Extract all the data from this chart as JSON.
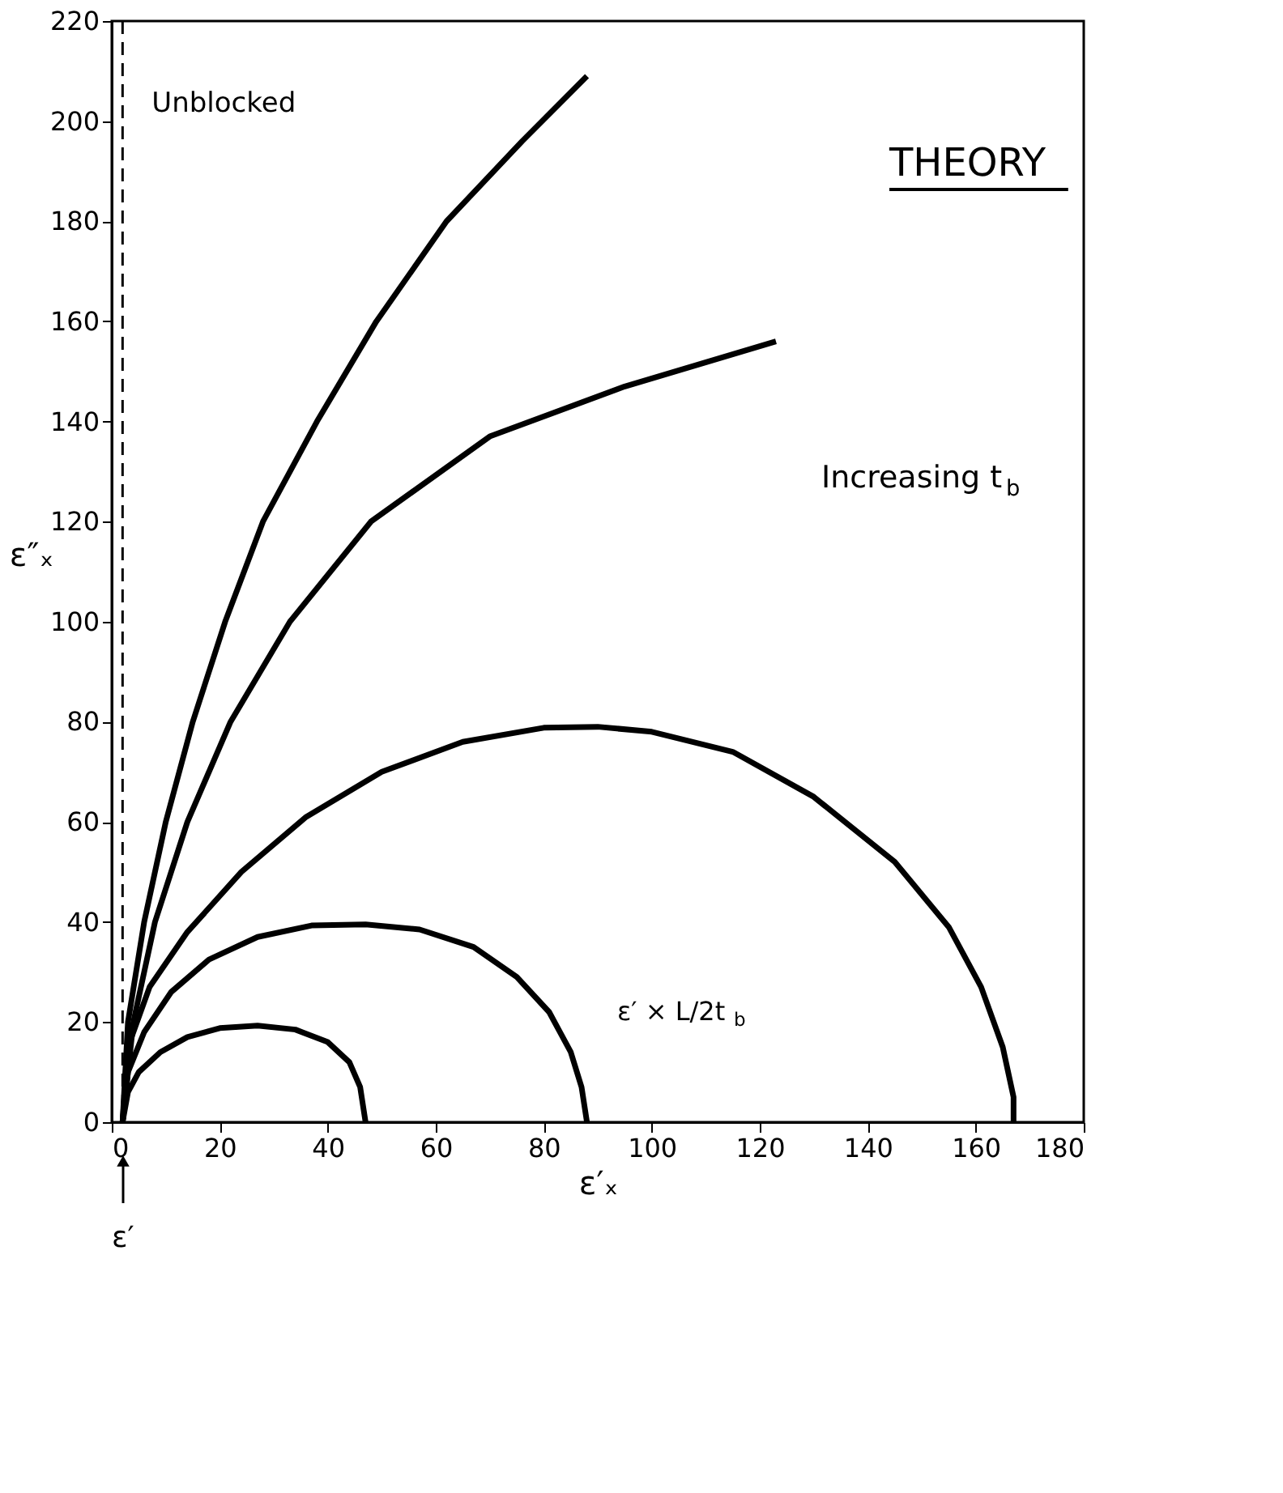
{
  "chart_data": {
    "type": "line",
    "xlabel": "ε′ₓ",
    "ylabel": "ε″ₓ",
    "xlim": [
      0,
      180
    ],
    "xticks": [
      0,
      20,
      40,
      60,
      80,
      100,
      120,
      140,
      160,
      180
    ],
    "ylim": [
      0,
      220
    ],
    "yticks": [
      0,
      20,
      40,
      60,
      80,
      100,
      120,
      140,
      160,
      180,
      200,
      220
    ],
    "marker": "none",
    "line_style": "solid",
    "series": [
      {
        "color": "#000000",
        "x": [
          2,
          3,
          5,
          9,
          14,
          20,
          27,
          34,
          40,
          44,
          46,
          47
        ],
        "values": [
          0,
          6,
          10,
          14,
          17,
          18.8,
          19.3,
          18.5,
          16,
          12,
          7,
          0
        ]
      },
      {
        "color": "#000000",
        "x": [
          2,
          3,
          6,
          11,
          18,
          27,
          37,
          47,
          57,
          67,
          75,
          81,
          85,
          87,
          88
        ],
        "values": [
          0,
          10,
          18,
          26,
          32.5,
          37,
          39.3,
          39.5,
          38.5,
          35,
          29,
          22,
          14,
          7,
          0
        ]
      },
      {
        "color": "#000000",
        "x": [
          2,
          3,
          7,
          14,
          24,
          36,
          50,
          65,
          80,
          90,
          100,
          115,
          130,
          145,
          155,
          161,
          165,
          167,
          167
        ],
        "values": [
          0,
          15,
          27,
          38,
          50,
          61,
          70,
          76,
          78.8,
          79,
          78,
          74,
          65,
          52,
          39,
          27,
          15,
          5,
          0
        ]
      },
      {
        "color": "#000000",
        "x": [
          2,
          4,
          8,
          14,
          22,
          33,
          48,
          70,
          95,
          123
        ],
        "values": [
          0,
          20,
          40,
          60,
          80,
          100,
          120,
          137,
          147,
          156
        ]
      },
      {
        "color": "#000000",
        "x": [
          2,
          3,
          6,
          10,
          15,
          21,
          28,
          38,
          49,
          62,
          76,
          88
        ],
        "values": [
          0,
          20,
          40,
          60,
          80,
          100,
          120,
          140,
          160,
          180,
          196,
          209
        ]
      }
    ],
    "ref_lines": [
      {
        "axis": "x",
        "value": 2,
        "label": "Unblocked",
        "line_style": "dashed",
        "color": "#000000"
      }
    ],
    "annotations": [
      "THEORY",
      "Increasing t$_{b}$",
      "ε′",
      "ε′ × L/2t$_{b}$"
    ]
  }
}
